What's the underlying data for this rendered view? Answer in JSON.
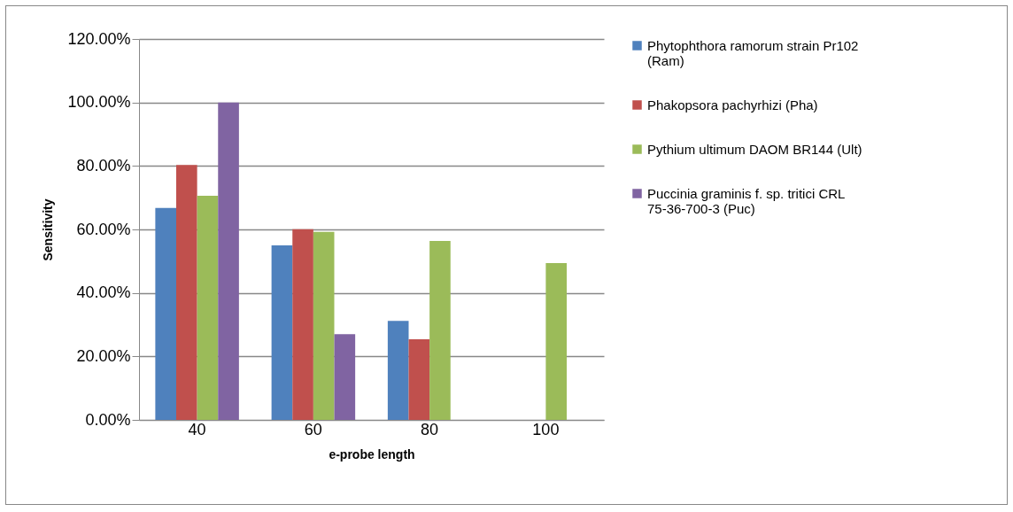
{
  "chart_data": {
    "type": "bar",
    "xlabel": "e-probe length",
    "ylabel": "Sensitivity",
    "categories": [
      "40",
      "60",
      "80",
      "100"
    ],
    "series": [
      {
        "name": "Phytophthora ramorum strain Pr102 (Ram)",
        "color": "#4f81bd",
        "values": [
          0.668,
          0.55,
          0.312,
          null
        ]
      },
      {
        "name": "Phakopsora pachyrhizi (Pha)",
        "color": "#c0504d",
        "values": [
          0.803,
          0.601,
          0.254,
          null
        ]
      },
      {
        "name": "Pythium ultimum DAOM BR144 (Ult)",
        "color": "#9bbb59",
        "values": [
          0.706,
          0.592,
          0.564,
          0.494
        ]
      },
      {
        "name": "Puccinia graminis f. sp. tritici CRL 75-36-700-3 (Puc)",
        "color": "#8064a2",
        "values": [
          1.0,
          0.27,
          null,
          null
        ]
      }
    ],
    "ylim": [
      0,
      1.2
    ],
    "yticks": [
      {
        "value": 0,
        "label": "0.00%"
      },
      {
        "value": 0.2,
        "label": "20.00%"
      },
      {
        "value": 0.4,
        "label": "40.00%"
      },
      {
        "value": 0.6,
        "label": "60.00%"
      },
      {
        "value": 0.8,
        "label": "80.00%"
      },
      {
        "value": 1.0,
        "label": "100.00%"
      },
      {
        "value": 1.2,
        "label": "120.00%"
      }
    ],
    "grid": "y",
    "legend": "right"
  }
}
